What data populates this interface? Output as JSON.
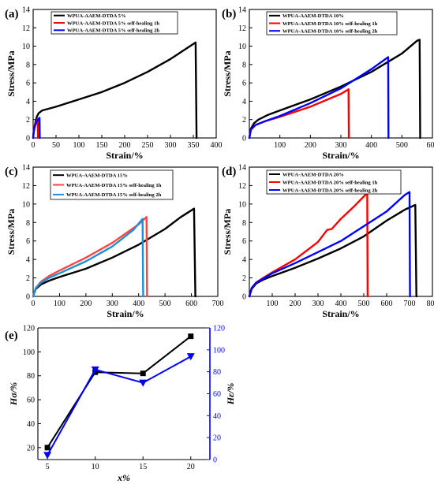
{
  "chart_data": [
    {
      "panel": "(a)",
      "type": "line",
      "xlabel": "Strain/%",
      "ylabel": "Stress/MPa",
      "xlim": [
        0,
        400
      ],
      "ylim": [
        0,
        14
      ],
      "xticks": [
        0,
        50,
        100,
        150,
        200,
        250,
        300,
        350,
        400
      ],
      "yticks": [
        0,
        2,
        4,
        6,
        8,
        10,
        12,
        14
      ],
      "legend_position": "top-left",
      "series": [
        {
          "name": "WPUA-AAEM-DTDA 5%",
          "color": "#000000",
          "points": [
            [
              0,
              0
            ],
            [
              2,
              1.0
            ],
            [
              5,
              1.7
            ],
            [
              8,
              2.3
            ],
            [
              12,
              2.7
            ],
            [
              20,
              3.0
            ],
            [
              50,
              3.4
            ],
            [
              100,
              4.2
            ],
            [
              150,
              5.0
            ],
            [
              200,
              6.0
            ],
            [
              250,
              7.2
            ],
            [
              300,
              8.6
            ],
            [
              355,
              10.4
            ],
            [
              357,
              0
            ]
          ]
        },
        {
          "name": "WPUA-AAEM-DTDA 5% self-healing 1h",
          "color": "#ff0000",
          "points": [
            [
              0,
              0
            ],
            [
              1,
              0.6
            ],
            [
              3,
              1.2
            ],
            [
              6,
              1.7
            ],
            [
              9,
              2.0
            ],
            [
              10,
              2.05
            ],
            [
              10.5,
              0
            ]
          ]
        },
        {
          "name": "WPUA-AAEM-DTDA 5% self-healing 2h",
          "color": "#0000ff",
          "points": [
            [
              0,
              0
            ],
            [
              1,
              0.6
            ],
            [
              4,
              1.3
            ],
            [
              8,
              1.8
            ],
            [
              12,
              2.1
            ],
            [
              14,
              2.2
            ],
            [
              14.5,
              0
            ]
          ]
        }
      ]
    },
    {
      "panel": "(b)",
      "type": "line",
      "xlabel": "Strain/%",
      "ylabel": "Stress/MPa",
      "xlim": [
        0,
        600
      ],
      "ylim": [
        0,
        14
      ],
      "xticks": [
        100,
        200,
        300,
        400,
        500,
        600
      ],
      "yticks": [
        0,
        2,
        4,
        6,
        8,
        10,
        12,
        14
      ],
      "legend_position": "top-left",
      "series": [
        {
          "name": "WPUA-AAEM-DTDA 10%",
          "color": "#000000",
          "points": [
            [
              0,
              0
            ],
            [
              5,
              1.0
            ],
            [
              15,
              1.6
            ],
            [
              30,
              2.0
            ],
            [
              60,
              2.5
            ],
            [
              100,
              3.0
            ],
            [
              200,
              4.2
            ],
            [
              300,
              5.6
            ],
            [
              400,
              7.2
            ],
            [
              500,
              9.2
            ],
            [
              550,
              10.6
            ],
            [
              558,
              10.7
            ],
            [
              560,
              0
            ]
          ]
        },
        {
          "name": "WPUA-AAEM-DTDA 10% self-healing 1h",
          "color": "#ff0000",
          "points": [
            [
              0,
              0
            ],
            [
              5,
              0.9
            ],
            [
              20,
              1.4
            ],
            [
              50,
              1.8
            ],
            [
              100,
              2.3
            ],
            [
              200,
              3.4
            ],
            [
              300,
              4.8
            ],
            [
              325,
              5.3
            ],
            [
              326,
              0
            ]
          ]
        },
        {
          "name": "WPUA-AAEM-DTDA 10% self-healing 2h",
          "color": "#0000ff",
          "points": [
            [
              0,
              0
            ],
            [
              5,
              0.9
            ],
            [
              20,
              1.4
            ],
            [
              50,
              1.8
            ],
            [
              100,
              2.4
            ],
            [
              200,
              3.8
            ],
            [
              300,
              5.4
            ],
            [
              400,
              7.5
            ],
            [
              455,
              8.8
            ],
            [
              456,
              0
            ]
          ]
        }
      ]
    },
    {
      "panel": "(c)",
      "type": "line",
      "xlabel": "Strain/%",
      "ylabel": "Stress/MPa",
      "xlim": [
        0,
        700
      ],
      "ylim": [
        0,
        14
      ],
      "xticks": [
        0,
        100,
        200,
        300,
        400,
        500,
        600,
        700
      ],
      "yticks": [
        0,
        2,
        4,
        6,
        8,
        10,
        12,
        14
      ],
      "legend_position": "top-left",
      "series": [
        {
          "name": "WPUA-AAEM-DTDA 15%",
          "color": "#000000",
          "points": [
            [
              0,
              0
            ],
            [
              10,
              0.8
            ],
            [
              30,
              1.3
            ],
            [
              60,
              1.7
            ],
            [
              100,
              2.1
            ],
            [
              200,
              3.0
            ],
            [
              300,
              4.2
            ],
            [
              400,
              5.6
            ],
            [
              500,
              7.3
            ],
            [
              560,
              8.6
            ],
            [
              610,
              9.5
            ],
            [
              615,
              0
            ]
          ]
        },
        {
          "name": "WPUA-AAEM-DTDA 15% self-healing 1h",
          "color": "#ff4444",
          "points": [
            [
              0,
              0
            ],
            [
              10,
              0.9
            ],
            [
              30,
              1.6
            ],
            [
              60,
              2.2
            ],
            [
              100,
              2.8
            ],
            [
              200,
              4.2
            ],
            [
              300,
              5.8
            ],
            [
              400,
              7.8
            ],
            [
              430,
              8.6
            ],
            [
              432,
              0
            ]
          ]
        },
        {
          "name": "WPUA-AAEM-DTDA 15% self-healing 2h",
          "color": "#1e90d6",
          "points": [
            [
              0,
              0
            ],
            [
              10,
              0.9
            ],
            [
              30,
              1.5
            ],
            [
              60,
              2.0
            ],
            [
              100,
              2.5
            ],
            [
              200,
              3.8
            ],
            [
              300,
              5.4
            ],
            [
              380,
              7.2
            ],
            [
              415,
              8.4
            ],
            [
              417,
              0
            ]
          ]
        }
      ]
    },
    {
      "panel": "(d)",
      "type": "line",
      "xlabel": "Strain/%",
      "ylabel": "Stress/MPa",
      "xlim": [
        0,
        800
      ],
      "ylim": [
        0,
        14
      ],
      "xticks": [
        100,
        200,
        300,
        400,
        500,
        600,
        700,
        800
      ],
      "yticks": [
        0,
        2,
        4,
        6,
        8,
        10,
        12,
        14
      ],
      "legend_position": "top-left",
      "series": [
        {
          "name": "WPUA-AAEM-DTDA 20%",
          "color": "#000000",
          "points": [
            [
              0,
              0
            ],
            [
              10,
              0.8
            ],
            [
              30,
              1.4
            ],
            [
              60,
              1.8
            ],
            [
              100,
              2.2
            ],
            [
              200,
              3.1
            ],
            [
              300,
              4.1
            ],
            [
              400,
              5.2
            ],
            [
              500,
              6.5
            ],
            [
              600,
              8.2
            ],
            [
              680,
              9.4
            ],
            [
              725,
              9.9
            ],
            [
              730,
              0
            ]
          ]
        },
        {
          "name": "WPUA-AAEM-DTDA 20% self-healing 1h",
          "color": "#ff0000",
          "points": [
            [
              0,
              0
            ],
            [
              10,
              0.9
            ],
            [
              30,
              1.5
            ],
            [
              60,
              2.0
            ],
            [
              100,
              2.6
            ],
            [
              200,
              4.0
            ],
            [
              300,
              5.9
            ],
            [
              340,
              7.2
            ],
            [
              360,
              7.3
            ],
            [
              400,
              8.4
            ],
            [
              460,
              9.8
            ],
            [
              515,
              11.2
            ],
            [
              517,
              0
            ]
          ]
        },
        {
          "name": "WPUA-AAEM-DTDA 20% self-healing 2h",
          "color": "#0000ff",
          "points": [
            [
              0,
              0
            ],
            [
              10,
              0.9
            ],
            [
              30,
              1.5
            ],
            [
              60,
              1.9
            ],
            [
              100,
              2.5
            ],
            [
              200,
              3.6
            ],
            [
              300,
              4.8
            ],
            [
              400,
              6.0
            ],
            [
              500,
              7.6
            ],
            [
              600,
              9.2
            ],
            [
              680,
              11.0
            ],
            [
              700,
              11.3
            ],
            [
              702,
              0
            ]
          ]
        }
      ]
    },
    {
      "panel": "(e)",
      "type": "line",
      "xlabel": "x%",
      "ylabel_left": "Hσ/%",
      "ylabel_right": "Hε/%",
      "xlim": [
        4,
        22
      ],
      "ylim_left": [
        10,
        120
      ],
      "ylim_right": [
        0,
        120
      ],
      "xticks": [
        5,
        10,
        15,
        20
      ],
      "yticks_left": [
        20,
        40,
        60,
        80,
        100,
        120
      ],
      "yticks_right": [
        0,
        20,
        40,
        60,
        80,
        100,
        120
      ],
      "series": [
        {
          "axis": "left",
          "marker": "square",
          "color": "#000000",
          "x": [
            5,
            10,
            15,
            20
          ],
          "y": [
            20,
            83,
            82,
            113
          ]
        },
        {
          "axis": "right",
          "marker": "triangle-down",
          "color": "#0000ff",
          "x": [
            5,
            10,
            15,
            20
          ],
          "y": [
            4,
            82,
            70,
            94
          ]
        }
      ]
    }
  ],
  "colors": {
    "axis": "#000000",
    "right_axis": "#0000ff",
    "background": "#ffffff"
  }
}
